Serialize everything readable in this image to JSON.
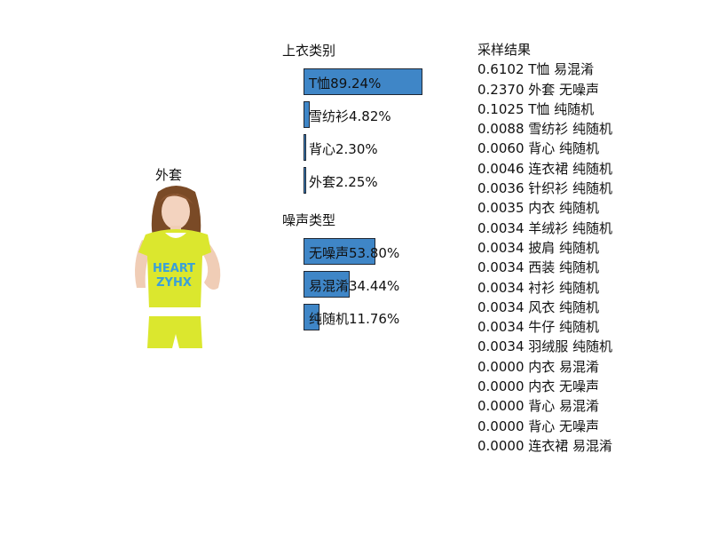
{
  "image": {
    "label": "外套",
    "alt": "woman in yellow HEART ZYHX t-shirt"
  },
  "chart_data": [
    {
      "type": "bar",
      "title": "上衣类别",
      "orientation": "horizontal",
      "xlim": [
        0,
        100
      ],
      "categories": [
        "T恤",
        "雪纺衫",
        "背心",
        "外套"
      ],
      "values": [
        89.24,
        4.82,
        2.3,
        2.25
      ],
      "labels": [
        "T恤89.24%",
        "雪纺衫4.82%",
        "背心2.30%",
        "外套2.25%"
      ]
    },
    {
      "type": "bar",
      "title": "噪声类型",
      "orientation": "horizontal",
      "xlim": [
        0,
        100
      ],
      "categories": [
        "无噪声",
        "易混淆",
        "纯随机"
      ],
      "values": [
        53.8,
        34.44,
        11.76
      ],
      "labels": [
        "无噪声53.80%",
        "易混淆34.44%",
        "纯随机11.76%"
      ]
    }
  ],
  "results": {
    "title": "采样结果",
    "items": [
      "0.6102 T恤 易混淆",
      "0.2370 外套 无噪声",
      "0.1025 T恤 纯随机",
      "0.0088 雪纺衫 纯随机",
      "0.0060 背心 纯随机",
      "0.0046 连衣裙 纯随机",
      "0.0036 针织衫 纯随机",
      "0.0035 内衣 纯随机",
      "0.0034 羊绒衫 纯随机",
      "0.0034 披肩 纯随机",
      "0.0034 西装 纯随机",
      "0.0034 衬衫 纯随机",
      "0.0034 风衣 纯随机",
      "0.0034 牛仔 纯随机",
      "0.0034 羽绒服 纯随机",
      "0.0000 内衣 易混淆",
      "0.0000 内衣 无噪声",
      "0.0000 背心 易混淆",
      "0.0000 背心 无噪声",
      "0.0000 连衣裙 易混淆"
    ]
  },
  "colors": {
    "bar": "#3f86c7",
    "bar_border": "#1f2733",
    "shirt": "#dbe72e",
    "shirt_text": "#3aa0d8"
  }
}
